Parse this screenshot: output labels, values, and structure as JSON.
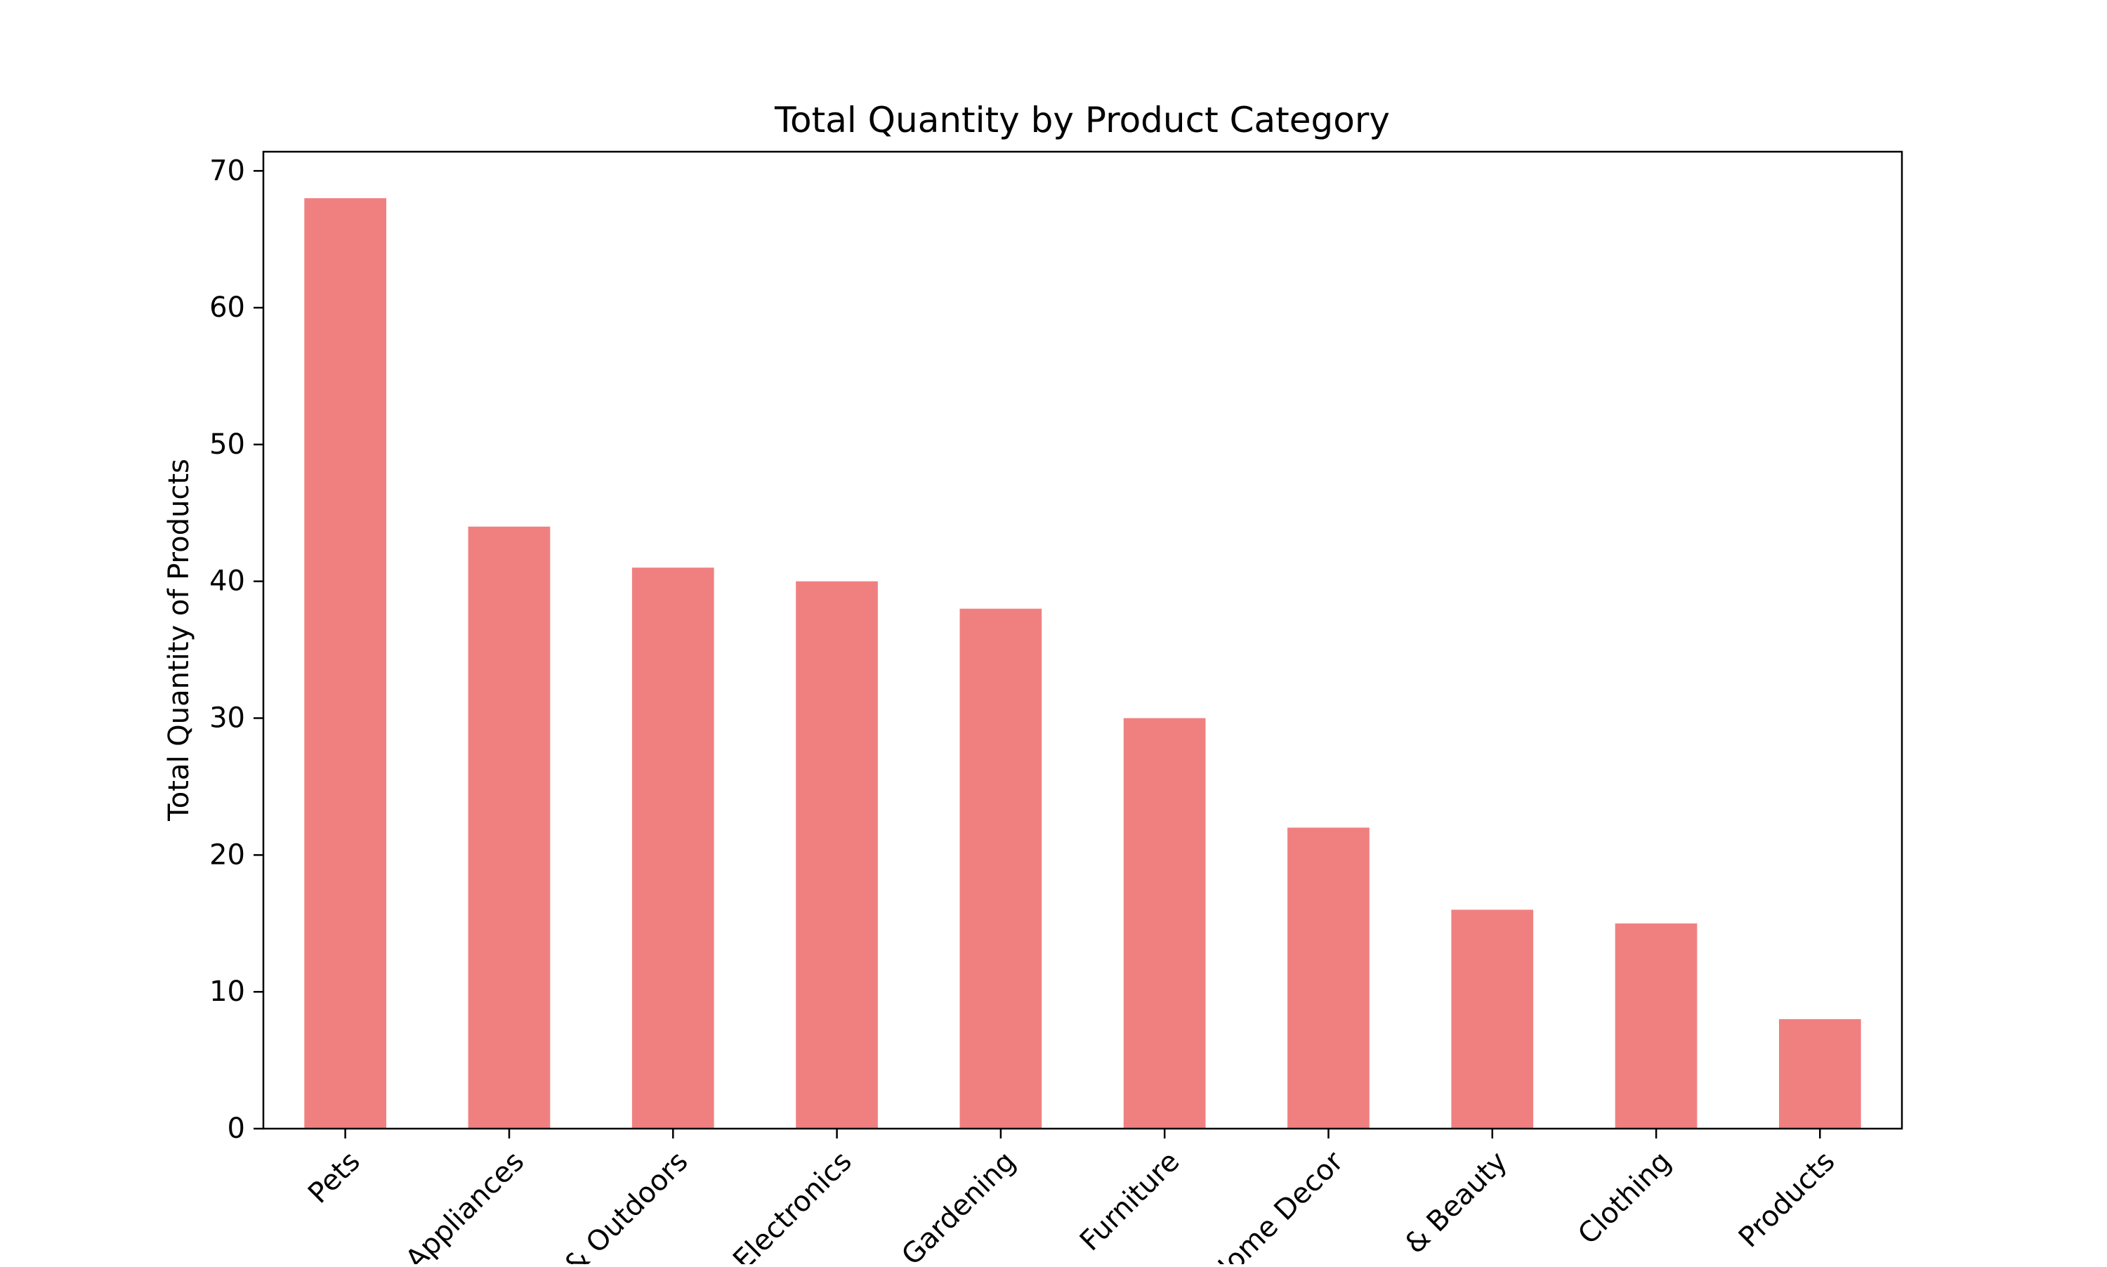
{
  "chart_data": {
    "type": "bar",
    "title": "Total Quantity by Product Category",
    "xlabel": "",
    "ylabel": "Total Quantity of Products",
    "categories": [
      "Pets",
      "Appliances",
      "& Outdoors",
      "Electronics",
      "Gardening",
      "Furniture",
      "Home Decor",
      "& Beauty",
      "Clothing",
      "Products"
    ],
    "values": [
      68,
      44,
      41,
      40,
      38,
      30,
      22,
      16,
      15,
      8
    ],
    "ylim": [
      0,
      71.4
    ],
    "yticks": [
      0,
      10,
      20,
      30,
      40,
      50,
      60,
      70
    ],
    "bar_color": "#f08080",
    "grid": false,
    "legend": "none"
  }
}
